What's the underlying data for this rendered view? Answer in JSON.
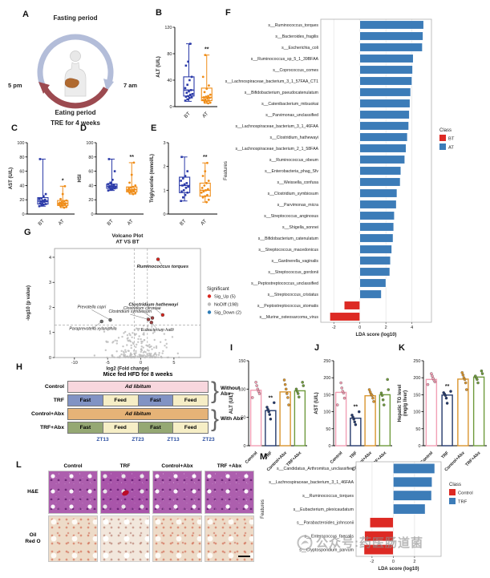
{
  "letters": {
    "A": "A",
    "B": "B",
    "C": "C",
    "D": "D",
    "E": "E",
    "F": "F",
    "G": "G",
    "H": "H",
    "I": "I",
    "J": "J",
    "K": "K",
    "L": "L",
    "M": "M"
  },
  "panelA": {
    "fasting": "Fasting period",
    "eating": "Eating period",
    "caption": "TRE for 4 weeks",
    "start": "5 pm",
    "end": "7 am"
  },
  "watermark": {
    "text": "公众号:药医肠道菌"
  },
  "h_design": {
    "title": "Mice fed HFD for 8 weeks",
    "rows": [
      {
        "label": "Control",
        "segments": [
          {
            "text": "Ad libitum",
            "fill": "#f8d7de",
            "italic": true
          }
        ]
      },
      {
        "label": "TRF",
        "segments": [
          {
            "text": "Fast",
            "fill": "#8193c4"
          },
          {
            "text": "Feed",
            "fill": "#f6eec6"
          },
          {
            "text": "Fast",
            "fill": "#8193c4"
          },
          {
            "text": "Feed",
            "fill": "#f6eec6"
          }
        ]
      },
      {
        "label": "Control+Abx",
        "segments": [
          {
            "text": "Ad libitum",
            "fill": "#e6b377",
            "italic": true
          }
        ]
      },
      {
        "label": "TRF+Abx",
        "segments": [
          {
            "text": "Fast",
            "fill": "#95a873"
          },
          {
            "text": "Feed",
            "fill": "#f6eec6"
          },
          {
            "text": "Fast",
            "fill": "#95a873"
          },
          {
            "text": "Feed",
            "fill": "#f6eec6"
          }
        ]
      }
    ],
    "group_labels": [
      "Without\nAbx",
      "With Abx"
    ],
    "zt_labels": [
      "ZT13",
      "ZT23",
      "ZT13",
      "ZT23"
    ]
  },
  "l_histology": {
    "col_labels": [
      "Control",
      "TRF",
      "Control+Abx",
      "TRF +Abx"
    ],
    "row_labels": [
      "H&E",
      "Oil\nRed O"
    ]
  },
  "chart_data": [
    {
      "panel": "B",
      "type": "box",
      "ylabel": "ALT (U/L)",
      "ylim": [
        0,
        120
      ],
      "yticks": [
        0,
        40,
        80,
        120
      ],
      "categories": [
        "BT",
        "AT"
      ],
      "colors": [
        "#2b3aa8",
        "#ef8c17"
      ],
      "stats": [
        {
          "min": 8,
          "q1": 16,
          "med": 25,
          "q3": 45,
          "max": 95
        },
        {
          "min": 5,
          "q1": 9,
          "med": 14,
          "q3": 28,
          "max": 78
        }
      ],
      "points": [
        [
          9,
          11,
          13,
          14,
          15,
          16,
          18,
          19,
          21,
          23,
          25,
          28,
          33,
          40,
          45,
          62,
          68,
          95
        ],
        [
          5,
          6,
          7,
          8,
          9,
          10,
          11,
          12,
          13,
          14,
          15,
          16,
          18,
          22,
          27,
          32,
          45,
          78
        ]
      ],
      "sig": {
        "group": 1,
        "label": "**"
      }
    },
    {
      "panel": "C",
      "type": "box",
      "ylabel": "AST (U/L)",
      "ylim": [
        0,
        100
      ],
      "yticks": [
        0,
        20,
        40,
        60,
        80,
        100
      ],
      "categories": [
        "BT",
        "AT"
      ],
      "colors": [
        "#2b3aa8",
        "#ef8c17"
      ],
      "stats": [
        {
          "min": 11,
          "q1": 14,
          "med": 18,
          "q3": 23,
          "max": 77
        },
        {
          "min": 9,
          "q1": 12,
          "med": 15,
          "q3": 19,
          "max": 39
        }
      ],
      "points": [
        [
          11,
          12,
          13,
          14,
          15,
          16,
          17,
          18,
          18,
          19,
          20,
          21,
          22,
          25,
          28,
          77
        ],
        [
          9,
          10,
          11,
          12,
          13,
          13,
          14,
          15,
          15,
          16,
          17,
          18,
          19,
          21,
          28,
          39
        ]
      ],
      "sig": {
        "group": 1,
        "label": "*"
      }
    },
    {
      "panel": "D",
      "type": "box",
      "ylabel": "HSI",
      "ylim": [
        0,
        100
      ],
      "yticks": [
        0,
        20,
        40,
        60,
        80,
        100
      ],
      "categories": [
        "BT",
        "AT"
      ],
      "colors": [
        "#2b3aa8",
        "#ef8c17"
      ],
      "stats": [
        {
          "min": 33,
          "q1": 36,
          "med": 39,
          "q3": 42,
          "max": 77
        },
        {
          "min": 28,
          "q1": 31,
          "med": 34,
          "q3": 38,
          "max": 72
        }
      ],
      "points": [
        [
          33,
          34,
          35,
          36,
          37,
          37,
          38,
          38,
          39,
          40,
          41,
          42,
          44,
          48,
          60,
          77
        ],
        [
          28,
          29,
          30,
          31,
          32,
          33,
          33,
          34,
          35,
          36,
          37,
          38,
          40,
          44,
          55,
          72
        ]
      ],
      "sig": {
        "group": 1,
        "label": "**"
      }
    },
    {
      "panel": "E",
      "type": "box",
      "ylabel": "Triglyceride (mmol/L)",
      "ylim": [
        0,
        3
      ],
      "yticks": [
        0,
        1,
        2,
        3
      ],
      "categories": [
        "BT",
        "AT"
      ],
      "colors": [
        "#2b3aa8",
        "#ef8c17"
      ],
      "stats": [
        {
          "min": 0.55,
          "q1": 0.9,
          "med": 1.2,
          "q3": 1.55,
          "max": 2.4
        },
        {
          "min": 0.5,
          "q1": 0.75,
          "med": 1.0,
          "q3": 1.3,
          "max": 2.15
        }
      ],
      "points": [
        [
          0.55,
          0.7,
          0.8,
          0.9,
          0.95,
          1.0,
          1.1,
          1.15,
          1.2,
          1.25,
          1.3,
          1.4,
          1.5,
          1.6,
          1.8,
          2.4
        ],
        [
          0.5,
          0.6,
          0.7,
          0.75,
          0.8,
          0.9,
          0.95,
          1.0,
          1.05,
          1.1,
          1.2,
          1.3,
          1.4,
          1.6,
          1.8,
          2.15
        ]
      ],
      "sig": {
        "group": 1,
        "label": "**"
      }
    },
    {
      "panel": "F",
      "type": "bar-h",
      "xlabel": "LDA score (log10)",
      "ylabel": "Features",
      "xticks": [
        -2,
        0,
        2,
        4
      ],
      "xlim": [
        -3,
        5.5
      ],
      "colors": {
        "pos": "#3c7cb8",
        "neg": "#dd2a24"
      },
      "legend": {
        "title": "Class",
        "entries": [
          {
            "label": "BT",
            "color": "#dd2a24"
          },
          {
            "label": "AT",
            "color": "#3c7cb8"
          }
        ]
      },
      "categories": [
        "s__Ruminococcus_torques",
        "s__Bacteroides_fragilis",
        "s__Escherichia_coli",
        "s__Ruminococcus_sp_5_1_39BFAA",
        "s__Coprococcus_comes",
        "s__Lachnospiraceae_bacterium_3_1_57FAA_CT1",
        "s__Bifidobacterium_pseudocatenulatum",
        "s__Catenibacterium_mitsuokai",
        "s__Parvimonas_unclassified",
        "s__Lachnospiraceae_bacterium_3_1_46FAA",
        "s__Clostridium_hathewayi",
        "s__Lachnospiraceae_bacterium_2_1_58FAA",
        "s__Ruminococcus_obeum",
        "s__Enterobacteria_phag_Sfv",
        "s__Weissella_confusa",
        "s__Clostridium_symbiosum",
        "s__Parvimonas_micra",
        "s__Streptococcus_anginosus",
        "s__Shigella_sonnei",
        "s__Bifidobacterium_catenulatum",
        "s__Streptococcus_macedonicus",
        "s__Gardnerella_vaginalis",
        "s__Streptococcus_gordonii",
        "s__Peptostreptococcus_unclassified",
        "s__Streptococcus_cristatus",
        "s__Peptostreptococcus_stomatis",
        "s__Murine_osteosarcoma_virus"
      ],
      "values": [
        4.9,
        4.85,
        4.8,
        4.1,
        4.05,
        4.0,
        3.9,
        3.85,
        3.8,
        3.75,
        3.65,
        3.55,
        3.45,
        3.15,
        3.1,
        2.85,
        2.8,
        2.65,
        2.6,
        2.55,
        2.45,
        2.35,
        2.3,
        2.0,
        1.65,
        -1.2,
        -2.3
      ]
    },
    {
      "panel": "G",
      "type": "scatter",
      "title": "Volcano Plot",
      "subtitle": "AT VS BT",
      "xlabel": "log2 (Fold change)",
      "ylabel": "-log10 (p value)",
      "xlim": [
        -13,
        9
      ],
      "ylim": [
        0,
        4.35
      ],
      "xticks": [
        -10,
        -5,
        0,
        5
      ],
      "yticks": [
        0,
        1,
        2,
        3,
        4
      ],
      "thresholds": {
        "h": 1.3,
        "v": [
          -1,
          1
        ]
      },
      "legend": {
        "title": "Significant",
        "entries": [
          {
            "label": "Sig_Up (5)",
            "color": "#d7261f"
          },
          {
            "label": "NoDiff (198)",
            "color": "#bcbcbc"
          },
          {
            "label": "Sig_Down (2)",
            "color": "#2c7bb6"
          }
        ]
      },
      "labeled_points": [
        {
          "name": "Ruminococcus torques",
          "x": 2.6,
          "y": 3.92,
          "lx": 3.3,
          "ly": 3.58,
          "color": "#d7261f",
          "tcol": "#b71c1c",
          "big": true
        },
        {
          "name": "Clostridium hathewayi",
          "x": 3.3,
          "y": 1.7,
          "lx": 1.9,
          "ly": 2.06,
          "color": "#d7261f",
          "tcol": "#b71c1c",
          "big": true
        },
        {
          "name": "Clostridium citroniae",
          "x": 1.75,
          "y": 1.58,
          "lx": 0.2,
          "ly": 1.92,
          "color": "#9c4040",
          "tcol": "#222222"
        },
        {
          "name": "Clostridium symbiosum",
          "x": 1.15,
          "y": 1.52,
          "lx": -1.6,
          "ly": 1.79,
          "color": "#9c4040",
          "tcol": "#222222"
        },
        {
          "name": "Prevotella copri",
          "x": -4.6,
          "y": 1.5,
          "lx": -7.4,
          "ly": 1.97,
          "color": "#6e6e6e",
          "tcol": "#222222"
        },
        {
          "name": "Paraprevotella xylaniphila",
          "x": -5.9,
          "y": 1.44,
          "lx": -7.2,
          "ly": 1.1,
          "color": "#6e6e6e",
          "tcol": "#222222"
        },
        {
          "name": "Eubacterium hallii",
          "x": 1.6,
          "y": 1.4,
          "lx": 2.5,
          "ly": 1.06,
          "color": "#9c4040",
          "tcol": "#222222"
        }
      ]
    },
    {
      "panel": "I",
      "type": "bar",
      "ylabel": "ALT (U/L)",
      "ylim": [
        0,
        150
      ],
      "yticks": [
        0,
        50,
        100,
        150
      ],
      "categories": [
        "Control",
        "TRF",
        "Control+Abx",
        "TRF+Abx"
      ],
      "values": [
        98,
        62,
        95,
        97
      ],
      "colors": [
        "#f2a0b5",
        "#24396b",
        "#d9952f",
        "#6f9a3d"
      ],
      "points": [
        [
          85,
          92,
          96,
          100,
          106,
          112
        ],
        [
          47,
          55,
          60,
          64,
          68,
          76
        ],
        [
          72,
          85,
          92,
          100,
          108,
          116
        ],
        [
          86,
          92,
          96,
          100,
          106,
          112
        ]
      ],
      "sig": {
        "group": 1,
        "label": "**"
      }
    },
    {
      "panel": "J",
      "type": "bar",
      "ylabel": "AST (U/L)",
      "ylim": [
        0,
        250
      ],
      "yticks": [
        0,
        50,
        100,
        150,
        200,
        250
      ],
      "categories": [
        "Control",
        "TRF",
        "Control+Abx",
        "TRF+Abx"
      ],
      "values": [
        157,
        81,
        147,
        150
      ],
      "colors": [
        "#f2a0b5",
        "#24396b",
        "#d9952f",
        "#6f9a3d"
      ],
      "points": [
        [
          120,
          140,
          155,
          160,
          170,
          185
        ],
        [
          62,
          70,
          78,
          84,
          90,
          100
        ],
        [
          130,
          140,
          148,
          152,
          158,
          165
        ],
        [
          120,
          135,
          148,
          155,
          165,
          195
        ]
      ],
      "sig": {
        "group": 1,
        "label": "**"
      }
    },
    {
      "panel": "K",
      "type": "bar",
      "ylabel": "Hepatic TG level",
      "ylabel2": "(mg/g liver)",
      "ylim": [
        0,
        250
      ],
      "yticks": [
        0,
        50,
        100,
        150,
        200,
        250
      ],
      "categories": [
        "Control",
        "TRF",
        "Control+Abx",
        "TRF+Abx"
      ],
      "values": [
        195,
        149,
        196,
        202
      ],
      "colors": [
        "#f2a0b5",
        "#24396b",
        "#d9952f",
        "#6f9a3d"
      ],
      "points": [
        [
          180,
          188,
          193,
          198,
          205,
          212
        ],
        [
          125,
          140,
          148,
          152,
          156,
          160
        ],
        [
          165,
          185,
          195,
          200,
          208,
          215
        ],
        [
          185,
          195,
          200,
          205,
          212,
          220
        ]
      ],
      "sig": {
        "group": 1,
        "label": "**"
      }
    },
    {
      "panel": "M",
      "type": "bar-h",
      "xlabel": "LDA score (log10)",
      "ylabel": "Features",
      "xticks": [
        -2,
        0,
        2
      ],
      "xlim": [
        -3.5,
        4.5
      ],
      "colors": {
        "pos": "#3c7cb8",
        "neg": "#dd2a24"
      },
      "legend": {
        "title": "Class",
        "entries": [
          {
            "label": "Control",
            "color": "#dd2a24"
          },
          {
            "label": "TRF",
            "color": "#3c7cb8"
          }
        ]
      },
      "categories": [
        "s__Candidatus_Arthromitus_unclassified",
        "s__Lachnospiraceae_bacterium_3_1_46FAA",
        "s__Ruminococcus_torques",
        "s__Eubacterium_plexicaudatum",
        "s__Parabacteroides_johnsonii",
        "s__Enterococcus_faecalis",
        "s__Cryptosporidium_parvum"
      ],
      "values": [
        3.9,
        3.65,
        3.6,
        3.0,
        -2.2,
        -2.7,
        -2.75
      ]
    }
  ]
}
